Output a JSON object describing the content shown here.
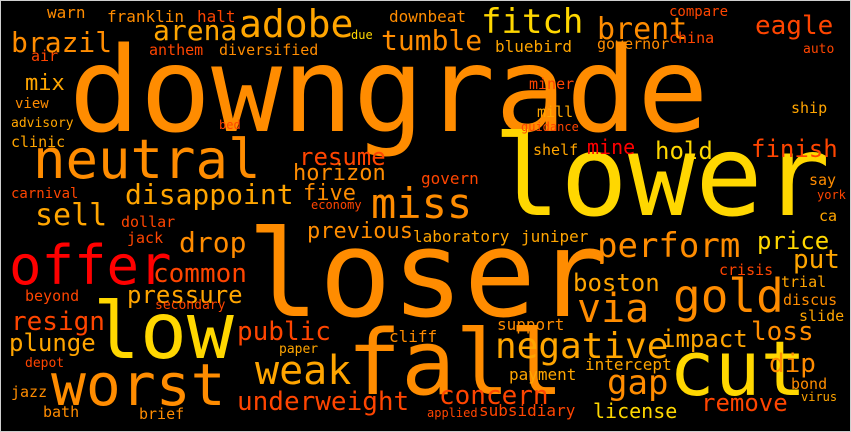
{
  "words": [
    {
      "id": "downgrade",
      "text": "downgrade",
      "color": "#ff8c00"
    },
    {
      "id": "lower",
      "text": "lower",
      "color": "#ffd700"
    },
    {
      "id": "loser",
      "text": "loser",
      "color": "#ff8c00"
    },
    {
      "id": "low",
      "text": "low",
      "color": "#ffd700"
    },
    {
      "id": "fall",
      "text": "fall",
      "color": "#ff8c00"
    },
    {
      "id": "cut",
      "text": "cut",
      "color": "#ffd700"
    },
    {
      "id": "worst",
      "text": "worst",
      "color": "#ff8c00"
    },
    {
      "id": "neutral",
      "text": "neutral",
      "color": "#ff8c00"
    },
    {
      "id": "offer",
      "text": "offer",
      "color": "#ff0000"
    },
    {
      "id": "miss",
      "text": "miss",
      "color": "#ff8c00"
    },
    {
      "id": "gold",
      "text": "gold",
      "color": "#ff8c00"
    },
    {
      "id": "adobe",
      "text": "adobe",
      "color": "#ffa500"
    },
    {
      "id": "perform",
      "text": "perform",
      "color": "#ff8c00"
    },
    {
      "id": "weak",
      "text": "weak",
      "color": "#ffa500"
    },
    {
      "id": "via",
      "text": "via",
      "color": "#ff8c00"
    },
    {
      "id": "negative",
      "text": "negative",
      "color": "#ffa500"
    },
    {
      "id": "gap",
      "text": "gap",
      "color": "#ff8c00"
    },
    {
      "id": "fitch",
      "text": "fitch",
      "color": "#ffd700"
    },
    {
      "id": "brent",
      "text": "brent",
      "color": "#ff8c00"
    },
    {
      "id": "eagle",
      "text": "eagle",
      "color": "#ff4500"
    },
    {
      "id": "tumble",
      "text": "tumble",
      "color": "#ff8c00"
    },
    {
      "id": "arena",
      "text": "arena",
      "color": "#ffa500"
    },
    {
      "id": "brazil",
      "text": "brazil",
      "color": "#ff8c00"
    },
    {
      "id": "disappoint",
      "text": "disappoint",
      "color": "#ffa500"
    },
    {
      "id": "sell",
      "text": "sell",
      "color": "#ffa500"
    },
    {
      "id": "drop",
      "text": "drop",
      "color": "#ff8c00"
    },
    {
      "id": "common",
      "text": "common",
      "color": "#ff4500"
    },
    {
      "id": "pressure",
      "text": "pressure",
      "color": "#ffa500"
    },
    {
      "id": "resign",
      "text": "resign",
      "color": "#ff4500"
    },
    {
      "id": "plunge",
      "text": "plunge",
      "color": "#ffa500"
    },
    {
      "id": "public",
      "text": "public",
      "color": "#ff4500"
    },
    {
      "id": "underweight",
      "text": "underweight",
      "color": "#ff4500"
    },
    {
      "id": "concern",
      "text": "concern",
      "color": "#ff4500"
    },
    {
      "id": "resume",
      "text": "resume",
      "color": "#ff4500"
    },
    {
      "id": "horizon",
      "text": "horizon",
      "color": "#ff8c00"
    },
    {
      "id": "five",
      "text": "five",
      "color": "#ff8c00"
    },
    {
      "id": "previous",
      "text": "previous",
      "color": "#ff8c00"
    },
    {
      "id": "hold",
      "text": "hold",
      "color": "#ffd700"
    },
    {
      "id": "mine",
      "text": "mine",
      "color": "#ff0000"
    },
    {
      "id": "finish",
      "text": "finish",
      "color": "#ff4500"
    },
    {
      "id": "put",
      "text": "put",
      "color": "#ffa500"
    },
    {
      "id": "price",
      "text": "price",
      "color": "#ffd700"
    },
    {
      "id": "boston",
      "text": "boston",
      "color": "#ffa500"
    },
    {
      "id": "impact",
      "text": "impact",
      "color": "#ffa500"
    },
    {
      "id": "loss",
      "text": "loss",
      "color": "#ff8c00"
    },
    {
      "id": "dip",
      "text": "dip",
      "color": "#ff8c00"
    },
    {
      "id": "remove",
      "text": "remove",
      "color": "#ff4500"
    },
    {
      "id": "license",
      "text": "license",
      "color": "#ffd700"
    },
    {
      "id": "mix",
      "text": "mix",
      "color": "#ffa500"
    },
    {
      "id": "laboratory",
      "text": "laboratory",
      "color": "#ffa500"
    },
    {
      "id": "juniper",
      "text": "juniper",
      "color": "#ffa500"
    },
    {
      "id": "support",
      "text": "support",
      "color": "#ff8c00"
    },
    {
      "id": "cliff",
      "text": "cliff",
      "color": "#ff8c00"
    },
    {
      "id": "payment",
      "text": "payment",
      "color": "#ffa500"
    },
    {
      "id": "intercept",
      "text": "intercept",
      "color": "#ffa500"
    },
    {
      "id": "subsidiary",
      "text": "subsidiary",
      "color": "#ff4500"
    },
    {
      "id": "bluebird",
      "text": "bluebird",
      "color": "#ffa500"
    },
    {
      "id": "downbeat",
      "text": "downbeat",
      "color": "#ff8c00"
    },
    {
      "id": "compare",
      "text": "compare",
      "color": "#ff4500"
    },
    {
      "id": "governor",
      "text": "governor",
      "color": "#ff8c00"
    },
    {
      "id": "china",
      "text": "china",
      "color": "#ff4500"
    },
    {
      "id": "auto",
      "text": "auto",
      "color": "#ff4500"
    },
    {
      "id": "warn",
      "text": "warn",
      "color": "#ff8c00"
    },
    {
      "id": "franklin",
      "text": "franklin",
      "color": "#ff8c00"
    },
    {
      "id": "halt",
      "text": "halt",
      "color": "#ff4500"
    },
    {
      "id": "anthem",
      "text": "anthem",
      "color": "#ff4500"
    },
    {
      "id": "diversified",
      "text": "diversified",
      "color": "#ff8c00"
    },
    {
      "id": "due",
      "text": "due",
      "color": "#ffd700"
    },
    {
      "id": "air",
      "text": "air",
      "color": "#ff4500"
    },
    {
      "id": "view",
      "text": "view",
      "color": "#ff8c00"
    },
    {
      "id": "advisory",
      "text": "advisory",
      "color": "#ffa500"
    },
    {
      "id": "clinic",
      "text": "clinic",
      "color": "#ffa500"
    },
    {
      "id": "carnival",
      "text": "carnival",
      "color": "#ff4500"
    },
    {
      "id": "bed",
      "text": "bed",
      "color": "#ff4500"
    },
    {
      "id": "miner",
      "text": "miner",
      "color": "#ff4500"
    },
    {
      "id": "mill",
      "text": "mill",
      "color": "#ffa500"
    },
    {
      "id": "guidance",
      "text": "guidance",
      "color": "#ff4500"
    },
    {
      "id": "shelf",
      "text": "shelf",
      "color": "#ffa500"
    },
    {
      "id": "govern",
      "text": "govern",
      "color": "#ff4500"
    },
    {
      "id": "economy",
      "text": "economy",
      "color": "#ff4500"
    },
    {
      "id": "ship",
      "text": "ship",
      "color": "#ffa500"
    },
    {
      "id": "say",
      "text": "say",
      "color": "#ff8c00"
    },
    {
      "id": "york",
      "text": "york",
      "color": "#ff4500"
    },
    {
      "id": "ca",
      "text": "ca",
      "color": "#ffa500"
    },
    {
      "id": "trial",
      "text": "trial",
      "color": "#ffa500"
    },
    {
      "id": "crisis",
      "text": "crisis",
      "color": "#ff4500"
    },
    {
      "id": "discus",
      "text": "discus",
      "color": "#ff8c00"
    },
    {
      "id": "slide",
      "text": "slide",
      "color": "#ffa500"
    },
    {
      "id": "dollar",
      "text": "dollar",
      "color": "#ff4500"
    },
    {
      "id": "jack",
      "text": "jack",
      "color": "#ff4500"
    },
    {
      "id": "beyond",
      "text": "beyond",
      "color": "#ff4500"
    },
    {
      "id": "secondary",
      "text": "secondary",
      "color": "#ff4500"
    },
    {
      "id": "depot",
      "text": "depot",
      "color": "#ff4500"
    },
    {
      "id": "paper",
      "text": "paper",
      "color": "#ffa500"
    },
    {
      "id": "jazz",
      "text": "jazz",
      "color": "#ff8c00"
    },
    {
      "id": "bath",
      "text": "bath",
      "color": "#ff8c00"
    },
    {
      "id": "brief",
      "text": "brief",
      "color": "#ff8c00"
    },
    {
      "id": "applied",
      "text": "applied",
      "color": "#ff4500"
    },
    {
      "id": "bond",
      "text": "bond",
      "color": "#ff8c00"
    },
    {
      "id": "virus",
      "text": "virus",
      "color": "#ffa500"
    }
  ]
}
